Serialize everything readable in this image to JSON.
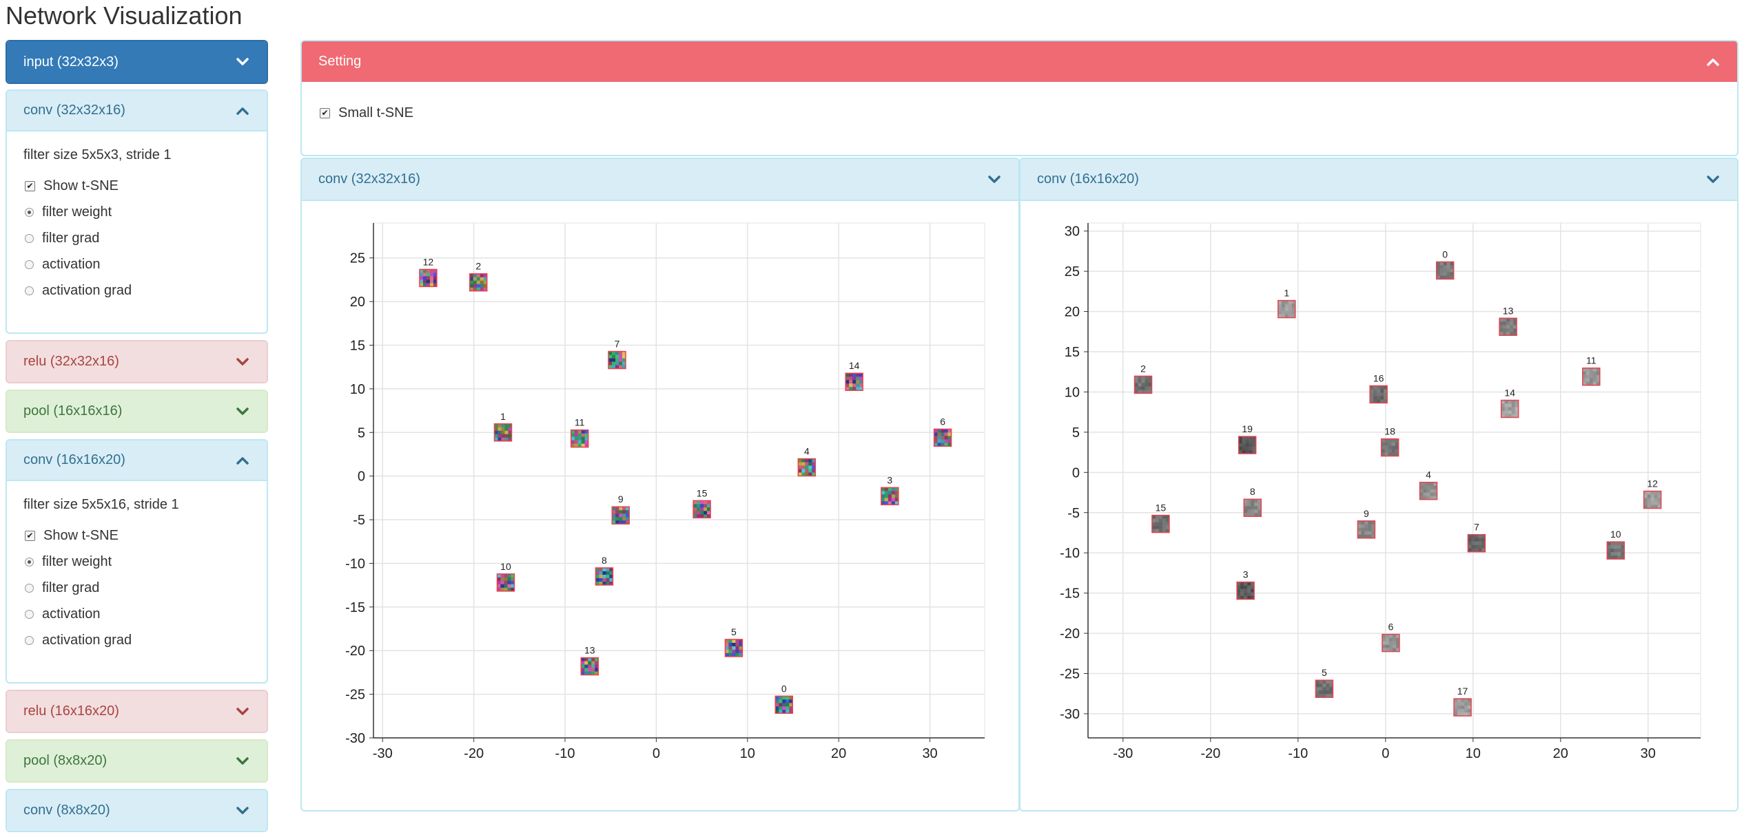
{
  "app": {
    "title": "Network Visualization"
  },
  "sidebar": {
    "layers": [
      {
        "label": "input (32x32x3)",
        "theme": "primary",
        "expanded": false
      },
      {
        "label": "conv (32x32x16)",
        "theme": "info",
        "expanded": true,
        "filter_info": "filter size 5x5x3, stride 1",
        "show_tsne_label": "Show t-SNE",
        "show_tsne_checked": true,
        "options": [
          "filter weight",
          "filter grad",
          "activation",
          "activation grad"
        ],
        "selected_option": "filter weight"
      },
      {
        "label": "relu (32x32x16)",
        "theme": "danger",
        "expanded": false
      },
      {
        "label": "pool (16x16x16)",
        "theme": "success",
        "expanded": false
      },
      {
        "label": "conv (16x16x20)",
        "theme": "info",
        "expanded": true,
        "filter_info": "filter size 5x5x16, stride 1",
        "show_tsne_label": "Show t-SNE",
        "show_tsne_checked": true,
        "options": [
          "filter weight",
          "filter grad",
          "activation",
          "activation grad"
        ],
        "selected_option": "filter weight"
      },
      {
        "label": "relu (16x16x20)",
        "theme": "danger",
        "expanded": false
      },
      {
        "label": "pool (8x8x20)",
        "theme": "success",
        "expanded": false
      },
      {
        "label": "conv (8x8x20)",
        "theme": "info",
        "expanded": false
      }
    ]
  },
  "setting": {
    "title": "Setting",
    "small_tsne_label": "Small t-SNE",
    "small_tsne_checked": true
  },
  "colors": {
    "primary": "#337ab7",
    "info_bg": "#d9edf7",
    "info_text": "#31708f",
    "danger_bg": "#f2dede",
    "danger_text": "#a94442",
    "success_bg": "#dff0d8",
    "success_text": "#3c763d",
    "setting_header": "#ef6a73"
  },
  "icons": {
    "collapsed": "chevron-down-icon",
    "expanded": "chevron-up-icon"
  },
  "panels": [
    {
      "title": "conv (32x32x16)"
    },
    {
      "title": "conv (16x16x20)"
    }
  ],
  "chart_data": [
    {
      "type": "scatter",
      "title": "conv (32x32x16)",
      "xlabel": "",
      "ylabel": "",
      "xlim": [
        -31,
        36
      ],
      "ylim": [
        -30,
        29
      ],
      "xticks": [
        -30,
        -20,
        -10,
        0,
        10,
        20,
        30
      ],
      "yticks": [
        25,
        20,
        15,
        10,
        5,
        0,
        -5,
        -10,
        -15,
        -20,
        -25,
        -30
      ],
      "grid": true,
      "point_style": "color thumbnail",
      "points": [
        {
          "label": "12",
          "x": -25,
          "y": 22.7
        },
        {
          "label": "2",
          "x": -19.5,
          "y": 22.2
        },
        {
          "label": "7",
          "x": -4.3,
          "y": 13.3
        },
        {
          "label": "14",
          "x": 21.7,
          "y": 10.8
        },
        {
          "label": "1",
          "x": -16.8,
          "y": 5
        },
        {
          "label": "11",
          "x": -8.4,
          "y": 4.3
        },
        {
          "label": "6",
          "x": 31.4,
          "y": 4.4
        },
        {
          "label": "4",
          "x": 16.5,
          "y": 1
        },
        {
          "label": "3",
          "x": 25.6,
          "y": -2.3
        },
        {
          "label": "9",
          "x": -3.9,
          "y": -4.5
        },
        {
          "label": "15",
          "x": 5,
          "y": -3.8
        },
        {
          "label": "10",
          "x": -16.5,
          "y": -12.2
        },
        {
          "label": "8",
          "x": -5.7,
          "y": -11.5
        },
        {
          "label": "13",
          "x": -7.3,
          "y": -21.8
        },
        {
          "label": "5",
          "x": 8.5,
          "y": -19.7
        },
        {
          "label": "0",
          "x": 14,
          "y": -26.2
        }
      ]
    },
    {
      "type": "scatter",
      "title": "conv (16x16x20)",
      "xlabel": "",
      "ylabel": "",
      "xlim": [
        -34,
        36
      ],
      "ylim": [
        -33,
        31
      ],
      "xticks": [
        -30,
        -20,
        -10,
        0,
        10,
        20,
        30
      ],
      "yticks": [
        30,
        25,
        20,
        15,
        10,
        5,
        0,
        -5,
        -10,
        -15,
        -20,
        -25,
        -30
      ],
      "grid": true,
      "point_style": "grayscale thumbnail",
      "points": [
        {
          "label": "0",
          "x": 6.8,
          "y": 25.1
        },
        {
          "label": "1",
          "x": -11.3,
          "y": 20.3
        },
        {
          "label": "13",
          "x": 14,
          "y": 18.1
        },
        {
          "label": "2",
          "x": -27.7,
          "y": 10.9
        },
        {
          "label": "16",
          "x": -0.8,
          "y": 9.7
        },
        {
          "label": "11",
          "x": 23.5,
          "y": 11.9
        },
        {
          "label": "14",
          "x": 14.2,
          "y": 7.9
        },
        {
          "label": "19",
          "x": -15.8,
          "y": 3.4
        },
        {
          "label": "18",
          "x": 0.5,
          "y": 3.1
        },
        {
          "label": "4",
          "x": 4.9,
          "y": -2.3
        },
        {
          "label": "12",
          "x": 30.5,
          "y": -3.4
        },
        {
          "label": "15",
          "x": -25.7,
          "y": -6.4
        },
        {
          "label": "8",
          "x": -15.2,
          "y": -4.4
        },
        {
          "label": "9",
          "x": -2.2,
          "y": -7.1
        },
        {
          "label": "7",
          "x": 10.4,
          "y": -8.8
        },
        {
          "label": "10",
          "x": 26.3,
          "y": -9.7
        },
        {
          "label": "3",
          "x": -16,
          "y": -14.7
        },
        {
          "label": "6",
          "x": 0.6,
          "y": -21.2
        },
        {
          "label": "5",
          "x": -7,
          "y": -26.9
        },
        {
          "label": "17",
          "x": 8.8,
          "y": -29.2
        }
      ]
    }
  ]
}
